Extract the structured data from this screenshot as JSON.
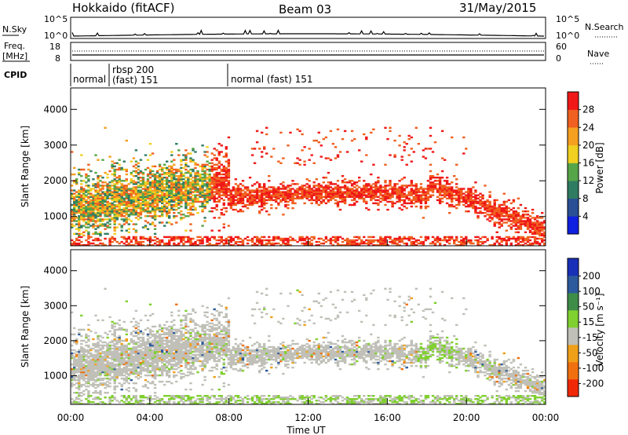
{
  "header": {
    "station": "Hokkaido (fitACF)",
    "beam": "Beam 03",
    "date": "31/May/2015"
  },
  "strips": {
    "nsky_label": "N.Sky",
    "nsky_ticks": [
      "10^5",
      "10^0"
    ],
    "nsearch_label": "N.Search",
    "nsearch_ticks": [
      "10^5",
      "10^0"
    ],
    "freq_label": "Freq.",
    "freq_unit": "[MHz]",
    "freq_ticks": [
      "18",
      "8"
    ],
    "nave_label": "Nave",
    "nave_ticks": [
      "60",
      "0"
    ],
    "cpid_label": "CPID",
    "cpid_segments": [
      {
        "label": "normal",
        "sub": ""
      },
      {
        "label": "rbsp 200",
        "sub": "(fast) 151"
      },
      {
        "label": "normal (fast) 151",
        "sub": ""
      }
    ]
  },
  "chart_data": [
    {
      "type": "heatmap",
      "title": "",
      "xlabel": "",
      "ylabel": "Slant Range [km]",
      "ylim": [
        180,
        4600
      ],
      "yticks": [
        "1000",
        "2000",
        "3000",
        "4000"
      ],
      "colorbar_label": "Power [dB]",
      "colorbar_ticks": [
        "4",
        "8",
        "12",
        "16",
        "20",
        "24",
        "28"
      ],
      "colors": [
        "#1020e0",
        "#2a4f95",
        "#2f7c63",
        "#56a548",
        "#f0d020",
        "#f5a020",
        "#f06020",
        "#f01818"
      ]
    },
    {
      "type": "heatmap",
      "title": "",
      "xlabel": "Time UT",
      "ylabel": "Slant Range [km]",
      "ylim": [
        180,
        4600
      ],
      "yticks": [
        "1000",
        "2000",
        "3000",
        "4000"
      ],
      "colorbar_label": "Velocity [m s⁻¹]",
      "colorbar_ticks": [
        "200",
        "100",
        "50",
        "15",
        "-15",
        "-50",
        "-100",
        "-200"
      ],
      "colors": [
        "#1830b8",
        "#2c5a9c",
        "#3e8c48",
        "#80d030",
        "#c0c0b8",
        "#f0a018",
        "#f07010",
        "#f02808"
      ]
    }
  ],
  "time_axis": {
    "label": "Time UT",
    "ticks": [
      "00:00",
      "04:00",
      "08:00",
      "12:00",
      "16:00",
      "20:00",
      "00:00"
    ]
  }
}
